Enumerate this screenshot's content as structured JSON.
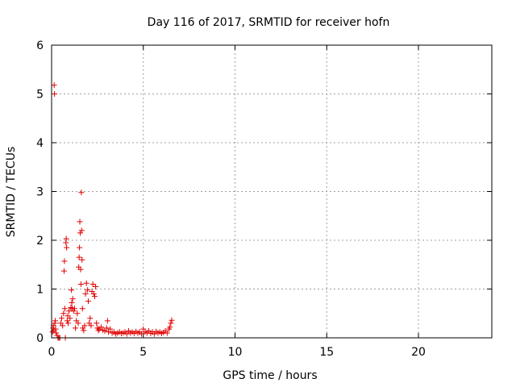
{
  "chart_data": {
    "type": "scatter",
    "title": "Day 116 of 2017, SRMTID for receiver hofn",
    "xlabel": "GPS time / hours",
    "ylabel": "SRMTID / TECUs",
    "xlim": [
      0,
      24
    ],
    "ylim": [
      0,
      6
    ],
    "xticks": [
      0,
      5,
      10,
      15,
      20
    ],
    "yticks": [
      0,
      1,
      2,
      3,
      4,
      5,
      6
    ],
    "xtick_labels": [
      "0",
      "5",
      "10",
      "15",
      "20"
    ],
    "ytick_labels": [
      "0",
      "1",
      "2",
      "3",
      "4",
      "5",
      "6"
    ],
    "grid": true,
    "marker": "plus",
    "color": "#e00000",
    "series": [
      {
        "name": "hofn",
        "points": [
          [
            0.05,
            0.12
          ],
          [
            0.08,
            0.2
          ],
          [
            0.1,
            0.25
          ],
          [
            0.12,
            0.15
          ],
          [
            0.14,
            5.18
          ],
          [
            0.16,
            5.0
          ],
          [
            0.18,
            0.3
          ],
          [
            0.2,
            0.35
          ],
          [
            0.22,
            0.18
          ],
          [
            0.25,
            0.1
          ],
          [
            0.3,
            0.05
          ],
          [
            0.35,
            0.0
          ],
          [
            0.4,
            0.0
          ],
          [
            0.45,
            0.0
          ],
          [
            0.5,
            0.3
          ],
          [
            0.55,
            0.4
          ],
          [
            0.6,
            0.25
          ],
          [
            0.65,
            0.5
          ],
          [
            0.68,
            1.37
          ],
          [
            0.7,
            1.57
          ],
          [
            0.72,
            0.6
          ],
          [
            0.75,
            0.0
          ],
          [
            0.78,
            1.95
          ],
          [
            0.8,
            2.03
          ],
          [
            0.82,
            1.85
          ],
          [
            0.85,
            0.35
          ],
          [
            0.88,
            0.45
          ],
          [
            0.9,
            0.3
          ],
          [
            0.95,
            0.55
          ],
          [
            1.0,
            0.4
          ],
          [
            1.05,
            0.62
          ],
          [
            1.08,
            0.98
          ],
          [
            1.1,
            0.72
          ],
          [
            1.12,
            0.6
          ],
          [
            1.15,
            0.8
          ],
          [
            1.2,
            0.55
          ],
          [
            1.25,
            0.6
          ],
          [
            1.3,
            0.2
          ],
          [
            1.35,
            0.35
          ],
          [
            1.4,
            0.5
          ],
          [
            1.45,
            0.3
          ],
          [
            1.48,
            1.45
          ],
          [
            1.5,
            1.65
          ],
          [
            1.52,
            1.85
          ],
          [
            1.54,
            2.38
          ],
          [
            1.56,
            2.15
          ],
          [
            1.58,
            1.4
          ],
          [
            1.6,
            1.1
          ],
          [
            1.62,
            2.98
          ],
          [
            1.64,
            2.2
          ],
          [
            1.66,
            1.6
          ],
          [
            1.68,
            0.6
          ],
          [
            1.7,
            0.2
          ],
          [
            1.75,
            0.15
          ],
          [
            1.8,
            0.25
          ],
          [
            1.85,
            0.9
          ],
          [
            1.9,
            1.12
          ],
          [
            1.95,
            0.98
          ],
          [
            2.0,
            0.75
          ],
          [
            2.05,
            0.3
          ],
          [
            2.1,
            0.4
          ],
          [
            2.15,
            0.25
          ],
          [
            2.2,
            0.95
          ],
          [
            2.25,
            1.1
          ],
          [
            2.3,
            0.9
          ],
          [
            2.35,
            0.85
          ],
          [
            2.4,
            1.05
          ],
          [
            2.45,
            0.3
          ],
          [
            2.5,
            0.2
          ],
          [
            2.55,
            0.15
          ],
          [
            2.6,
            0.18
          ],
          [
            2.7,
            0.22
          ],
          [
            2.8,
            0.16
          ],
          [
            2.9,
            0.14
          ],
          [
            3.0,
            0.2
          ],
          [
            3.05,
            0.35
          ],
          [
            3.1,
            0.12
          ],
          [
            3.2,
            0.18
          ],
          [
            3.3,
            0.1
          ],
          [
            3.4,
            0.12
          ],
          [
            3.5,
            0.08
          ],
          [
            3.6,
            0.1
          ],
          [
            3.7,
            0.12
          ],
          [
            3.8,
            0.09
          ],
          [
            3.9,
            0.1
          ],
          [
            4.0,
            0.12
          ],
          [
            4.1,
            0.08
          ],
          [
            4.2,
            0.14
          ],
          [
            4.3,
            0.1
          ],
          [
            4.4,
            0.12
          ],
          [
            4.5,
            0.09
          ],
          [
            4.6,
            0.13
          ],
          [
            4.7,
            0.1
          ],
          [
            4.8,
            0.12
          ],
          [
            4.9,
            0.08
          ],
          [
            5.0,
            0.18
          ],
          [
            5.1,
            0.12
          ],
          [
            5.2,
            0.1
          ],
          [
            5.3,
            0.14
          ],
          [
            5.4,
            0.09
          ],
          [
            5.5,
            0.12
          ],
          [
            5.6,
            0.08
          ],
          [
            5.7,
            0.13
          ],
          [
            5.8,
            0.1
          ],
          [
            5.9,
            0.12
          ],
          [
            6.0,
            0.09
          ],
          [
            6.1,
            0.11
          ],
          [
            6.2,
            0.14
          ],
          [
            6.3,
            0.1
          ],
          [
            6.4,
            0.18
          ],
          [
            6.45,
            0.22
          ],
          [
            6.5,
            0.3
          ],
          [
            6.55,
            0.36
          ]
        ]
      }
    ]
  }
}
